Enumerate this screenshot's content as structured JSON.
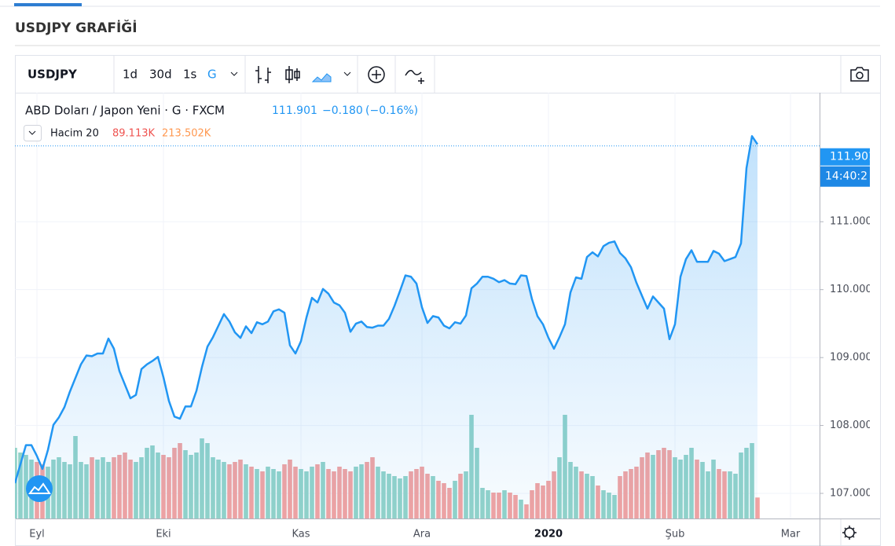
{
  "header": {
    "title": "USDJPY GRAFİĞİ"
  },
  "toolbar": {
    "symbol": "USDJPY",
    "intervals": [
      "1d",
      "30d",
      "1s",
      "G"
    ]
  },
  "legend": {
    "name": "ABD Doları / Japon Yeni · G · FXCM",
    "last": "111.901",
    "change": "−0.180",
    "change_pct": "(−0.16%)",
    "volume_name": "Hacim 20",
    "volume": "89.113K",
    "volume_ma": "213.502K"
  },
  "price_label": {
    "price": "111.901",
    "time": "14:40:2"
  },
  "chart_data": {
    "type": "line",
    "color": "#2196f3",
    "volume_colors": {
      "up": "#93d3c9",
      "down": "#f3a3a1"
    },
    "grid": true,
    "ylim": [
      106.63,
      112.9
    ],
    "yticks": [
      {
        "value": 107,
        "label": "107.000"
      },
      {
        "value": 108,
        "label": "108.000"
      },
      {
        "value": 109,
        "label": "109.000"
      },
      {
        "value": 110,
        "label": "110.000"
      },
      {
        "value": 111,
        "label": "111.000"
      }
    ],
    "categories": [
      null,
      null,
      null,
      null,
      "Eyl",
      null,
      null,
      null,
      null,
      null,
      null,
      null,
      null,
      null,
      null,
      null,
      null,
      null,
      null,
      null,
      null,
      null,
      null,
      null,
      null,
      null,
      null,
      "Eki",
      null,
      null,
      null,
      null,
      null,
      null,
      null,
      null,
      null,
      null,
      null,
      null,
      null,
      null,
      null,
      null,
      null,
      null,
      null,
      null,
      null,
      null,
      null,
      null,
      "Kas",
      null,
      null,
      null,
      null,
      null,
      null,
      null,
      null,
      null,
      null,
      null,
      null,
      null,
      null,
      null,
      null,
      null,
      null,
      null,
      null,
      null,
      "Ara",
      null,
      null,
      null,
      null,
      null,
      null,
      null,
      null,
      null,
      null,
      null,
      null,
      null,
      null,
      null,
      null,
      null,
      null,
      null,
      null,
      null,
      null,
      "2020",
      null,
      null,
      null,
      null,
      null,
      null,
      null,
      null,
      null,
      null,
      null,
      null,
      null,
      null,
      null,
      null,
      null,
      null,
      null,
      null,
      null,
      null,
      "Şub",
      null,
      null,
      null,
      null,
      null,
      null,
      null,
      null,
      null,
      null,
      null,
      null,
      null,
      null,
      null,
      null,
      null,
      null,
      null,
      null,
      "Mar",
      null
    ],
    "values": [
      107.15,
      107.43,
      107.71,
      107.71,
      107.55,
      107.36,
      107.64,
      108.01,
      108.12,
      108.27,
      108.5,
      108.7,
      108.9,
      109.03,
      109.02,
      109.06,
      109.06,
      109.28,
      109.13,
      108.8,
      108.6,
      108.4,
      108.45,
      108.83,
      108.9,
      108.95,
      109.01,
      108.71,
      108.36,
      108.13,
      108.1,
      108.28,
      108.28,
      108.51,
      108.86,
      109.16,
      109.3,
      109.47,
      109.64,
      109.53,
      109.37,
      109.29,
      109.46,
      109.36,
      109.52,
      109.49,
      109.53,
      109.68,
      109.71,
      109.66,
      109.18,
      109.06,
      109.24,
      109.59,
      109.88,
      109.81,
      110.01,
      109.94,
      109.81,
      109.77,
      109.66,
      109.38,
      109.5,
      109.53,
      109.45,
      109.44,
      109.47,
      109.47,
      109.57,
      109.76,
      109.98,
      110.21,
      110.19,
      110.09,
      109.74,
      109.51,
      109.61,
      109.59,
      109.47,
      109.43,
      109.52,
      109.5,
      109.62,
      110.02,
      110.09,
      110.19,
      110.19,
      110.16,
      110.11,
      110.14,
      110.09,
      110.08,
      110.21,
      110.2,
      109.86,
      109.61,
      109.49,
      109.29,
      109.13,
      109.3,
      109.49,
      109.96,
      110.18,
      110.16,
      110.48,
      110.55,
      110.49,
      110.64,
      110.69,
      110.71,
      110.54,
      110.46,
      110.33,
      110.1,
      109.91,
      109.72,
      109.9,
      109.81,
      109.72,
      109.27,
      109.49,
      110.19,
      110.45,
      110.58,
      110.41,
      110.41,
      110.41,
      110.57,
      110.53,
      110.42,
      110.45,
      110.48,
      110.68,
      111.79,
      112.26,
      112.14,
      null,
      null,
      null,
      null,
      null,
      null,
      null
    ],
    "volume": [
      300,
      280,
      270,
      250,
      240,
      230,
      220,
      250,
      260,
      240,
      230,
      350,
      240,
      230,
      260,
      250,
      260,
      240,
      260,
      270,
      280,
      250,
      240,
      260,
      300,
      310,
      280,
      270,
      260,
      300,
      320,
      290,
      270,
      280,
      340,
      320,
      260,
      250,
      240,
      230,
      240,
      250,
      230,
      220,
      210,
      200,
      220,
      210,
      200,
      230,
      250,
      220,
      210,
      200,
      220,
      230,
      240,
      210,
      200,
      220,
      210,
      200,
      220,
      230,
      240,
      260,
      220,
      200,
      190,
      180,
      170,
      180,
      200,
      210,
      220,
      190,
      180,
      160,
      150,
      130,
      160,
      190,
      200,
      440,
      300,
      130,
      120,
      110,
      110,
      120,
      110,
      100,
      80,
      60,
      120,
      150,
      140,
      160,
      200,
      260,
      440,
      240,
      220,
      200,
      190,
      180,
      140,
      120,
      110,
      100,
      180,
      200,
      210,
      220,
      260,
      280,
      270,
      290,
      300,
      290,
      260,
      250,
      270,
      300,
      250,
      240,
      200,
      250,
      210,
      200,
      200,
      190,
      280,
      300,
      320,
      89.113,
      null,
      null,
      null,
      null,
      null,
      null,
      null
    ]
  }
}
